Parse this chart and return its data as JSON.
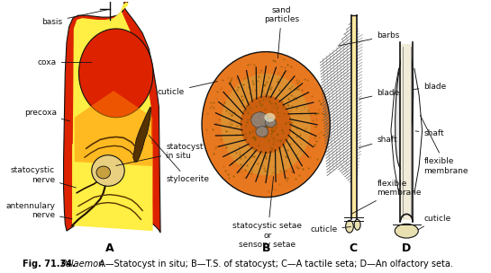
{
  "title": "Fig. 71.34.",
  "italic_title": "Palaemon.",
  "caption": " A—Statocyst in situ; B—T.S. of statocyst; C—A tactile seta; D—An olfactory seta.",
  "bg_color": "#ffffff",
  "fig_width": 5.45,
  "fig_height": 3.04,
  "colors": {
    "red_body": "#dd2200",
    "red_dark": "#bb1800",
    "yellow_inner": "#ffee44",
    "orange_gradient": "#ff8800",
    "statocyst_orange": "#e87820",
    "statocyst_yellow": "#ffcc00",
    "line_color": "#111111",
    "dark_brown": "#442200",
    "seta_gray": "#888888",
    "cuticle_cream": "#e8e0b0"
  }
}
